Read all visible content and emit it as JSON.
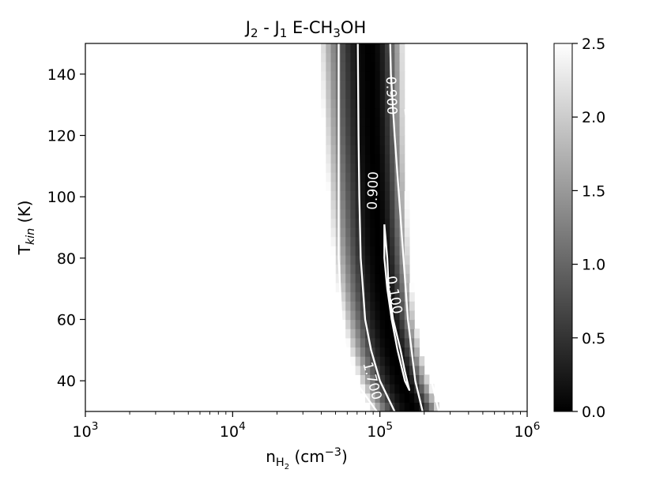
{
  "chart_data": {
    "type": "heatmap",
    "title": {
      "parts": [
        [
          "J",
          ""
        ],
        [
          "2",
          "sub"
        ],
        [
          " - J",
          ""
        ],
        [
          "1",
          "sub"
        ],
        [
          " E-CH",
          ""
        ],
        [
          "3",
          "sub"
        ],
        [
          "OH",
          ""
        ]
      ]
    },
    "xlabel": {
      "parts": [
        [
          "n",
          ""
        ],
        [
          "H",
          "sub"
        ],
        [
          "2",
          "subsub"
        ],
        [
          " (cm",
          ""
        ],
        [
          "−3",
          "sup"
        ],
        [
          ")",
          ""
        ]
      ]
    },
    "ylabel": {
      "parts": [
        [
          "T",
          ""
        ],
        [
          "kin",
          "sub-italic"
        ],
        [
          " (K)",
          ""
        ]
      ]
    },
    "x_scale": "log",
    "xlim": [
      1000,
      1000000
    ],
    "ylim": [
      30,
      150
    ],
    "x_ticks": [
      {
        "value": 1000,
        "base": "10",
        "exp": "3"
      },
      {
        "value": 10000,
        "base": "10",
        "exp": "4"
      },
      {
        "value": 100000,
        "base": "10",
        "exp": "5"
      },
      {
        "value": 1000000,
        "base": "10",
        "exp": "6"
      }
    ],
    "y_ticks": [
      {
        "value": 40,
        "label": "40"
      },
      {
        "value": 60,
        "label": "60"
      },
      {
        "value": 80,
        "label": "80"
      },
      {
        "value": 100,
        "label": "100"
      },
      {
        "value": 120,
        "label": "120"
      },
      {
        "value": 140,
        "label": "140"
      }
    ],
    "colormap": "gray",
    "colorbar": {
      "range": [
        0,
        2.5
      ],
      "ticks": [
        {
          "value": 0,
          "label": "0.0"
        },
        {
          "value": 0.5,
          "label": "0.5"
        },
        {
          "value": 1.0,
          "label": "1.0"
        },
        {
          "value": 1.5,
          "label": "1.5"
        },
        {
          "value": 2.0,
          "label": "2.0"
        },
        {
          "value": 2.5,
          "label": "2.5"
        }
      ]
    },
    "minimum_valley": {
      "description": "ridge of minimum value, log10 n as a function of T",
      "points": [
        [
          30,
          5.23
        ],
        [
          40,
          5.15
        ],
        [
          50,
          5.09
        ],
        [
          60,
          5.05
        ],
        [
          70,
          5.02
        ],
        [
          80,
          5.0
        ],
        [
          90,
          4.985
        ],
        [
          100,
          4.975
        ],
        [
          110,
          4.965
        ],
        [
          120,
          4.955
        ],
        [
          130,
          4.948
        ],
        [
          140,
          4.942
        ],
        [
          150,
          4.936
        ]
      ]
    },
    "contours": [
      {
        "level_label": "0.100",
        "paths": [
          [
            [
              91,
              5.03
            ],
            [
              80,
              5.05
            ],
            [
              70,
              5.06
            ],
            [
              60,
              5.09
            ],
            [
              50,
              5.14
            ],
            [
              43,
              5.17
            ],
            [
              37,
              5.2
            ],
            [
              40,
              5.17
            ],
            [
              50,
              5.12
            ],
            [
              60,
              5.08
            ],
            [
              70,
              5.05
            ],
            [
              80,
              5.03
            ],
            [
              91,
              5.03
            ]
          ]
        ]
      },
      {
        "level_label": "0.900",
        "paths": [
          [
            [
              30,
              5.1
            ],
            [
              40,
              5.0
            ],
            [
              50,
              4.94
            ],
            [
              60,
              4.9
            ],
            [
              80,
              4.87
            ],
            [
              100,
              4.86
            ],
            [
              120,
              4.855
            ],
            [
              150,
              4.85
            ]
          ],
          [
            [
              30,
              5.29
            ],
            [
              40,
              5.24
            ],
            [
              60,
              5.19
            ],
            [
              80,
              5.16
            ],
            [
              100,
              5.13
            ],
            [
              120,
              5.1
            ],
            [
              140,
              5.075
            ],
            [
              150,
              5.07
            ]
          ]
        ]
      },
      {
        "level_label": "1.700",
        "paths": [
          [
            [
              30,
              4.98
            ],
            [
              40,
              4.83
            ],
            [
              50,
              4.77
            ],
            [
              60,
              4.74
            ],
            [
              80,
              4.72
            ],
            [
              100,
              4.72
            ],
            [
              120,
              4.72
            ],
            [
              150,
              4.72
            ]
          ],
          [
            [
              30,
              5.4
            ],
            [
              40,
              5.35
            ],
            [
              60,
              5.31
            ],
            [
              80,
              5.28
            ],
            [
              100,
              5.25
            ],
            [
              120,
              5.22
            ],
            [
              150,
              5.19
            ]
          ]
        ]
      }
    ],
    "contour_labels": [
      {
        "text": "0.100",
        "log_n": 5.1,
        "T": 68,
        "angle": 80
      },
      {
        "text": "0.900",
        "log_n": 4.95,
        "T": 102,
        "angle": -88
      },
      {
        "text": "0.900",
        "log_n": 5.08,
        "T": 133,
        "angle": 88
      },
      {
        "text": "1.700",
        "log_n": 4.95,
        "T": 40,
        "angle": 75
      },
      {
        "text": "1.700",
        "log_n": 5.21,
        "T": 123,
        "angle": 84
      }
    ]
  }
}
